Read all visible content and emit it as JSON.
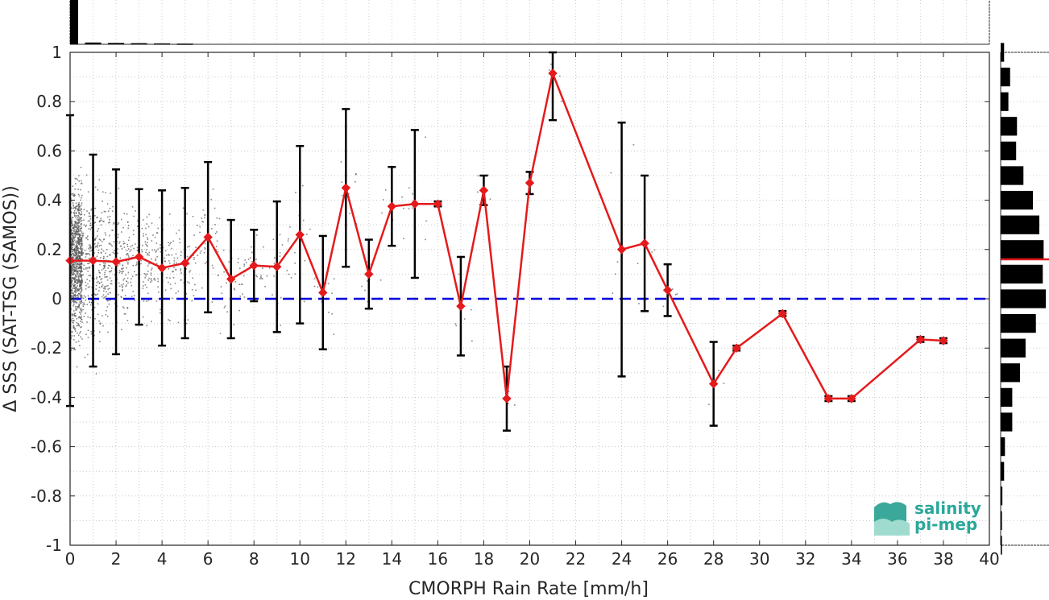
{
  "chart_data": {
    "type": "scatter",
    "xlabel": "CMORPH Rain Rate [mm/h]",
    "ylabel": "Δ SSS (SAT-TSG (SAMOS))",
    "xlim": [
      0,
      40
    ],
    "ylim": [
      -1,
      1
    ],
    "xticks": [
      "0",
      "2",
      "4",
      "6",
      "8",
      "10",
      "12",
      "14",
      "16",
      "18",
      "20",
      "22",
      "24",
      "26",
      "28",
      "30",
      "32",
      "34",
      "36",
      "38",
      "40"
    ],
    "yticks": [
      "-1",
      "-0.8",
      "-0.6",
      "-0.4",
      "-0.2",
      "0",
      "0.2",
      "0.4",
      "0.6",
      "0.8",
      "1"
    ],
    "grid": true,
    "reference_line": {
      "y": 0,
      "color": "#0000dd",
      "style": "dashed"
    },
    "series": [
      {
        "color": "#e41a1c",
        "x": [
          0,
          1,
          2,
          3,
          4,
          5,
          6,
          7,
          8,
          9,
          10,
          11,
          12,
          13,
          14,
          15,
          16,
          17,
          18,
          19,
          20,
          21,
          24,
          25,
          26,
          28,
          29,
          31,
          33,
          34,
          37,
          38
        ],
        "mean": [
          0.155,
          0.155,
          0.15,
          0.17,
          0.125,
          0.145,
          0.25,
          0.08,
          0.135,
          0.13,
          0.26,
          0.025,
          0.45,
          0.1,
          0.375,
          0.385,
          0.385,
          -0.03,
          0.44,
          -0.405,
          0.47,
          0.915,
          0.2,
          0.225,
          0.035,
          -0.345,
          -0.2,
          -0.06,
          -0.405,
          -0.405,
          -0.165,
          -0.17
        ],
        "std": [
          0.59,
          0.43,
          0.375,
          0.275,
          0.315,
          0.305,
          0.305,
          0.24,
          0.145,
          0.265,
          0.36,
          0.23,
          0.32,
          0.14,
          0.16,
          0.3,
          0.01,
          0.2,
          0.06,
          0.13,
          0.045,
          0.19,
          0.515,
          0.275,
          0.105,
          0.17,
          0.01,
          0.01,
          0.01,
          0.01,
          0.01,
          0.01
        ]
      }
    ],
    "top_histogram": {
      "bins": [
        0,
        1,
        2,
        3,
        4,
        5
      ],
      "counts": [
        1.0,
        0.04,
        0.03,
        0.025,
        0.02,
        0.015
      ]
    },
    "right_histogram": {
      "bin_centers": [
        1.0,
        0.9,
        0.8,
        0.7,
        0.6,
        0.5,
        0.4,
        0.3,
        0.2,
        0.1,
        0.0,
        -0.1,
        -0.2,
        -0.3,
        -0.4,
        -0.5,
        -0.6,
        -0.7,
        -0.8,
        -0.9,
        -1.0
      ],
      "counts": [
        0.08,
        0.22,
        0.18,
        0.38,
        0.36,
        0.53,
        0.75,
        0.9,
        1.0,
        0.98,
        1.05,
        0.82,
        0.58,
        0.45,
        0.27,
        0.27,
        0.1,
        0.08,
        0.04,
        0.03,
        0.03
      ],
      "median_line": 0.16,
      "median_color": "#e41a1c"
    },
    "colors": {
      "points": "#555555",
      "error_bars": "#000000",
      "bars": "#000000"
    }
  },
  "logo": {
    "line1": "salinity",
    "line2": "pi-mep"
  }
}
